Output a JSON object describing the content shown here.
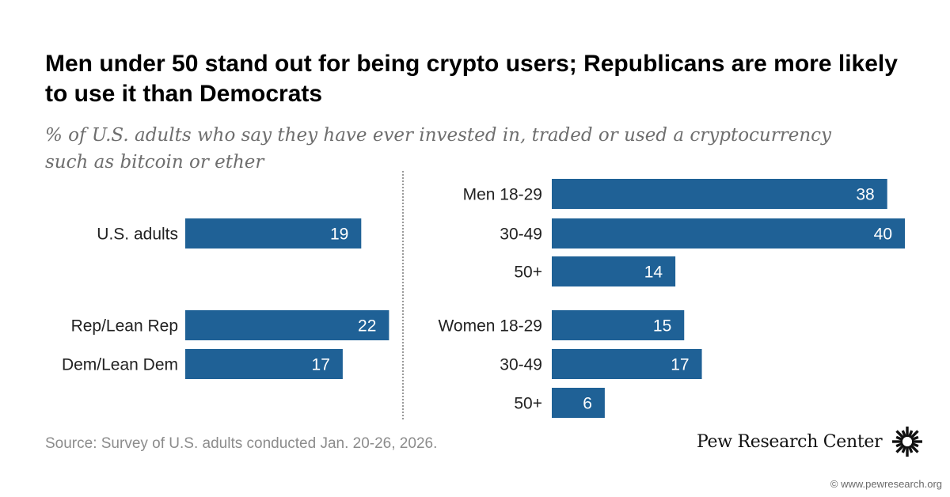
{
  "title": "Men under 50 stand out for being crypto users; Republicans are more likely to use it than Democrats",
  "subtitle": "% of U.S. adults who say they have ever invested in, traded or used a cryptocurrency such as bitcoin or ether",
  "source": "Source: Survey of U.S. adults conducted Jan. 20-26, 2026.",
  "brand": "Pew Research Center",
  "website": "© www.pewresearch.org",
  "colors": {
    "bar": "#1f6196",
    "bar_text": "#ffffff",
    "label": "#222222"
  },
  "brand_icon": "pew-sunburst-logo",
  "chart_data": [
    {
      "type": "bar",
      "orientation": "horizontal",
      "categories": [
        "U.S. adults",
        "Rep/Lean Rep",
        "Dem/Lean Dem"
      ],
      "values": [
        19,
        22,
        17
      ]
    },
    {
      "type": "bar",
      "orientation": "horizontal",
      "categories": [
        "Men 18-29",
        "30-49",
        "50+",
        "Women 18-29",
        "30-49",
        "50+"
      ],
      "values": [
        38,
        40,
        14,
        15,
        17,
        6
      ]
    }
  ]
}
